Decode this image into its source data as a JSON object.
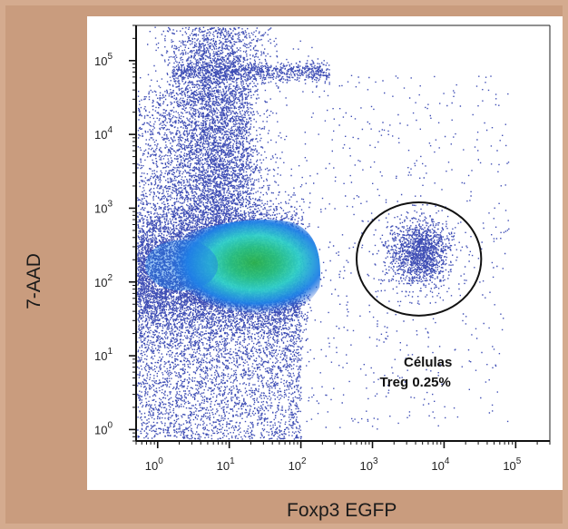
{
  "chart_data": {
    "type": "scatter",
    "title": "",
    "xlabel": "Foxp3 EGFP",
    "ylabel": "7-AAD",
    "x_scale": "log",
    "y_scale": "log",
    "xlim": [
      0.5,
      300000
    ],
    "ylim": [
      0.7,
      300000
    ],
    "x_ticks": [
      {
        "value": 1,
        "base": "10",
        "exp": "0"
      },
      {
        "value": 10,
        "base": "10",
        "exp": "1"
      },
      {
        "value": 100,
        "base": "10",
        "exp": "2"
      },
      {
        "value": 1000,
        "base": "10",
        "exp": "3"
      },
      {
        "value": 10000,
        "base": "10",
        "exp": "4"
      },
      {
        "value": 100000,
        "base": "10",
        "exp": "5"
      }
    ],
    "y_ticks": [
      {
        "value": 1,
        "base": "10",
        "exp": "0"
      },
      {
        "value": 10,
        "base": "10",
        "exp": "1"
      },
      {
        "value": 100,
        "base": "10",
        "exp": "2"
      },
      {
        "value": 1000,
        "base": "10",
        "exp": "3"
      },
      {
        "value": 10000,
        "base": "10",
        "exp": "4"
      },
      {
        "value": 100000,
        "base": "10",
        "exp": "5"
      }
    ],
    "populations": [
      {
        "name": "main",
        "density_peak_x": 40,
        "density_peak_y": 150
      },
      {
        "name": "treg",
        "center_x": 4500,
        "center_y": 250
      }
    ],
    "gate": {
      "shape": "circle",
      "center_x": 4500,
      "center_y": 220,
      "x_range": [
        600,
        33000
      ],
      "y_range": [
        35,
        1200
      ]
    },
    "annotation": {
      "line1": "Células",
      "line2": "Treg 0.25%"
    },
    "colors": {
      "background": "#d4ab8f",
      "frame": "#c99c7e",
      "low_density": "#1d2fa8",
      "mid_density": "#1e7fe6",
      "high_density": "#2fd0c8",
      "peak_density": "#2ab24a"
    }
  }
}
